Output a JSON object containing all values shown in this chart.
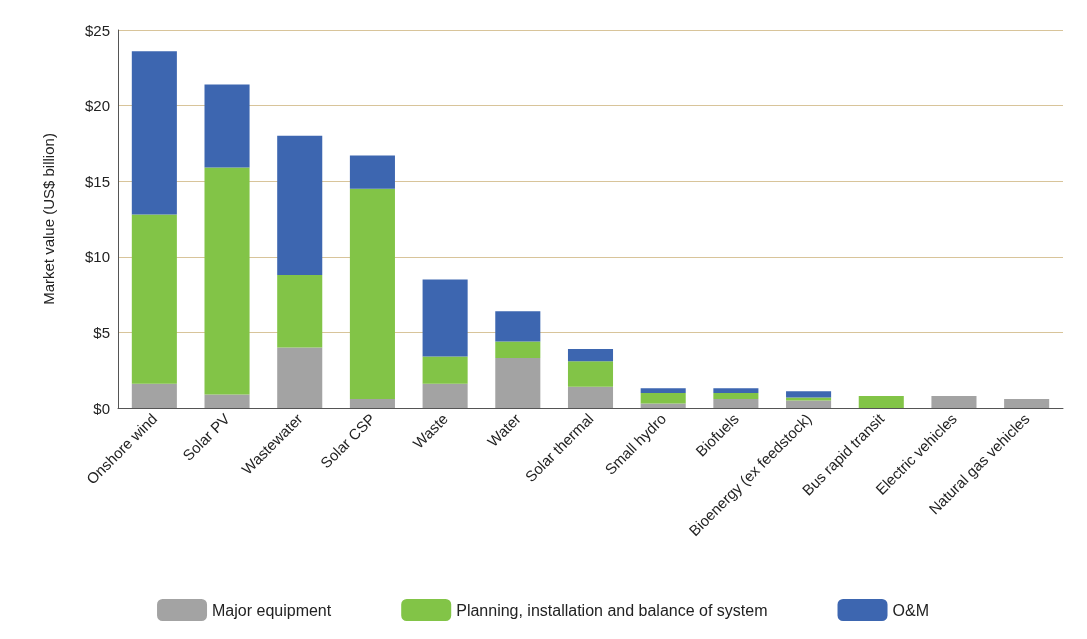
{
  "chart_data": {
    "type": "bar",
    "stacked": true,
    "ylabel": "Market value (US$ billion)",
    "categories": [
      "Onshore wind",
      "Solar PV",
      "Wastewater",
      "Solar CSP",
      "Waste",
      "Water",
      "Solar thermal",
      "Small hydro",
      "Biofuels",
      "Bioenergy (ex feedstock)",
      "Bus rapid transit",
      "Electric vehicles",
      "Natural gas vehicles"
    ],
    "series": [
      {
        "name": "Major equipment",
        "color": "#a3a3a3",
        "values": [
          1.6,
          0.9,
          4.0,
          0.6,
          1.6,
          3.3,
          1.4,
          0.3,
          0.6,
          0.5,
          0,
          0.8,
          0.6
        ]
      },
      {
        "name": "Planning, installation and balance of system",
        "color": "#82c447",
        "values": [
          11.2,
          15.0,
          4.8,
          13.9,
          1.8,
          1.1,
          1.7,
          0.7,
          0.4,
          0.2,
          0.8,
          0,
          0
        ]
      },
      {
        "name": "O&M",
        "color": "#3d66b0",
        "values": [
          10.8,
          5.5,
          9.2,
          2.2,
          5.1,
          2.0,
          0.8,
          0.3,
          0.3,
          0.4,
          0,
          0,
          0
        ]
      }
    ],
    "ylim": [
      0,
      25
    ],
    "yticks": [
      {
        "value": 0,
        "label": "$0"
      },
      {
        "value": 5,
        "label": "$5"
      },
      {
        "value": 10,
        "label": "$10"
      },
      {
        "value": 15,
        "label": "$15"
      },
      {
        "value": 20,
        "label": "$20"
      },
      {
        "value": 25,
        "label": "$25"
      }
    ],
    "grid": "y",
    "legend": "bottom"
  }
}
